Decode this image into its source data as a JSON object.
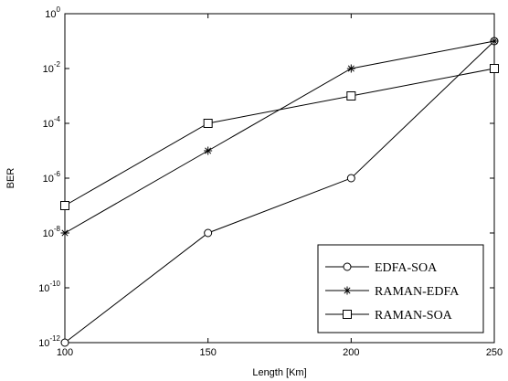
{
  "chart_data": {
    "type": "line",
    "title": "",
    "xlabel": "Length [Km]",
    "ylabel": "BER",
    "x": [
      100,
      150,
      200,
      250
    ],
    "xlim": [
      100,
      250
    ],
    "ylim": [
      1e-12,
      1
    ],
    "yscale": "log",
    "grid": false,
    "legend_position": "bottom-right",
    "x_ticks": [
      100,
      150,
      200,
      250
    ],
    "y_tick_exponents": [
      -12,
      -10,
      -8,
      -6,
      -4,
      -2,
      0
    ],
    "series": [
      {
        "name": "EDFA-SOA",
        "marker": "circle",
        "values": [
          1e-12,
          1e-08,
          1e-06,
          0.1
        ]
      },
      {
        "name": "RAMAN-EDFA",
        "marker": "star",
        "values": [
          1e-08,
          1e-05,
          0.01,
          0.1
        ]
      },
      {
        "name": "RAMAN-SOA",
        "marker": "square",
        "values": [
          1e-07,
          0.0001,
          0.001,
          0.01
        ]
      }
    ],
    "colors": {
      "line": "#000000",
      "background": "#ffffff"
    }
  }
}
